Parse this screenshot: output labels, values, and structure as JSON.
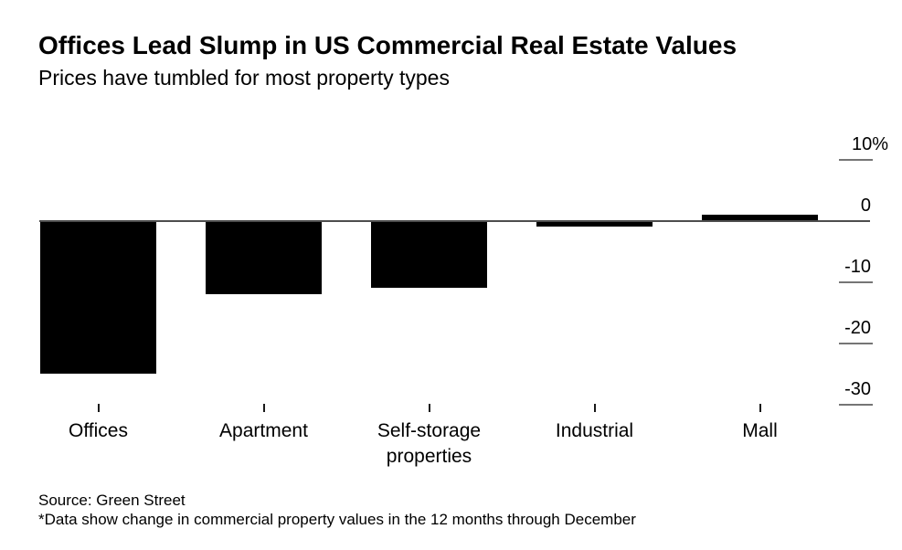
{
  "header": {
    "title": "Offices Lead Slump in US Commercial Real Estate Values",
    "subtitle": "Prices have tumbled for most property types"
  },
  "chart_data": {
    "type": "bar",
    "categories": [
      "Offices",
      "Apartment",
      "Self-storage properties",
      "Industrial",
      "Mall"
    ],
    "values": [
      -25,
      -12,
      -11,
      -1,
      1
    ],
    "unit": "%",
    "title": "Offices Lead Slump in US Commercial Real Estate Values",
    "subtitle": "Prices have tumbled for most property types",
    "xlabel": "",
    "ylabel": "",
    "y_axis": {
      "side": "right",
      "ylim": [
        -30,
        10
      ],
      "ticks": [
        10,
        0,
        -10,
        -20,
        -30
      ],
      "tick_labels": [
        "10%",
        "0",
        "-10",
        "-20",
        "-30"
      ],
      "zero_baseline": true
    },
    "grid": false,
    "legend": false,
    "bar_color": "#000000"
  },
  "footer": {
    "source": "Source: Green Street",
    "note": "*Data show change in commercial property values in the 12 months through December"
  },
  "colors": {
    "background": "#ffffff",
    "bar": "#000000",
    "zero_line": "#4d4d4d",
    "axis_tick": "#757575",
    "text": "#000000"
  }
}
